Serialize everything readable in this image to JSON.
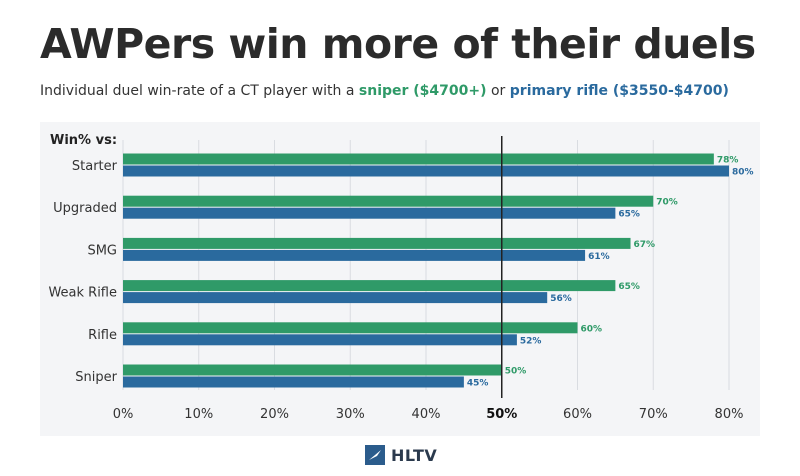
{
  "title": "AWPers win more of their duels",
  "subtitle": {
    "prefix": "Individual duel win-rate of a CT player with a ",
    "series1": "sniper ($4700+)",
    "mid": " or ",
    "series2": "primary rifle ($3550-$4700)"
  },
  "logo_text": "HLTV",
  "colors": {
    "sniper": "#2f9a68",
    "rifle": "#2a6a9e"
  },
  "chart_data": {
    "type": "bar",
    "orientation": "horizontal",
    "y_header": "Win% vs:",
    "categories": [
      "Starter",
      "Upgraded",
      "SMG",
      "Weak Rifle",
      "Rifle",
      "Sniper"
    ],
    "series": [
      {
        "values": [
          78,
          70,
          67,
          65,
          60,
          50
        ],
        "color": "#2f9a68",
        "labels": [
          "78%",
          "70%",
          "67%",
          "65%",
          "60%",
          "50%"
        ]
      },
      {
        "values": [
          80,
          65,
          61,
          56,
          52,
          45
        ],
        "color": "#2a6a9e",
        "labels": [
          "80%",
          "65%",
          "61%",
          "56%",
          "52%",
          "45%"
        ]
      }
    ],
    "xlim": [
      0,
      80
    ],
    "xticks": [
      "0%",
      "10%",
      "20%",
      "30%",
      "40%",
      "50%",
      "60%",
      "70%",
      "80%"
    ],
    "reference_line": 50,
    "grid": true
  }
}
